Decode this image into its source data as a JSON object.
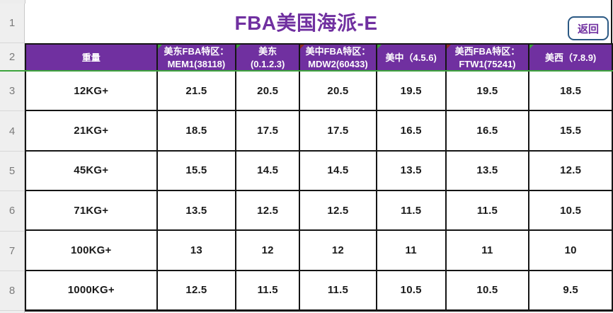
{
  "colors": {
    "purple": "#7030A0",
    "green": "#3DA43D",
    "btnborder": "#2B5984",
    "grid_black": "#151515",
    "gutter_bg": "#EFEFEF",
    "gutter_text": "#7A7A7A"
  },
  "title": {
    "text": "FBA美国海派-E",
    "back_button_label": "返回"
  },
  "row_numbers": [
    "1",
    "2",
    "3",
    "4",
    "5",
    "6",
    "7",
    "8"
  ],
  "table": {
    "header": [
      {
        "line1": "重量",
        "line2": "",
        "marker": ""
      },
      {
        "line1": "美东FBA特区：",
        "line2": "MEM1(38118)",
        "marker": "green"
      },
      {
        "line1": "美东",
        "line2": "(0.1.2.3)",
        "marker": "green"
      },
      {
        "line1": "美中FBA特区：",
        "line2": "MDW2(60433)",
        "marker": "red"
      },
      {
        "line1": "美中（4.5.6)",
        "line2": "",
        "marker": "green"
      },
      {
        "line1": "美西FBA特区：",
        "line2": "FTW1(75241)",
        "marker": "red"
      },
      {
        "line1": "美西（7.8.9)",
        "line2": "",
        "marker": "green"
      }
    ],
    "rows": [
      {
        "weight": "12KG+",
        "values": [
          "21.5",
          "20.5",
          "20.5",
          "19.5",
          "19.5",
          "18.5"
        ]
      },
      {
        "weight": "21KG+",
        "values": [
          "18.5",
          "17.5",
          "17.5",
          "16.5",
          "16.5",
          "15.5"
        ]
      },
      {
        "weight": "45KG+",
        "values": [
          "15.5",
          "14.5",
          "14.5",
          "13.5",
          "13.5",
          "12.5"
        ]
      },
      {
        "weight": "71KG+",
        "values": [
          "13.5",
          "12.5",
          "12.5",
          "11.5",
          "11.5",
          "10.5"
        ]
      },
      {
        "weight": "100KG+",
        "values": [
          "13",
          "12",
          "12",
          "11",
          "11",
          "10"
        ]
      },
      {
        "weight": "1000KG+",
        "values": [
          "12.5",
          "11.5",
          "11.5",
          "10.5",
          "10.5",
          "9.5"
        ]
      }
    ]
  }
}
